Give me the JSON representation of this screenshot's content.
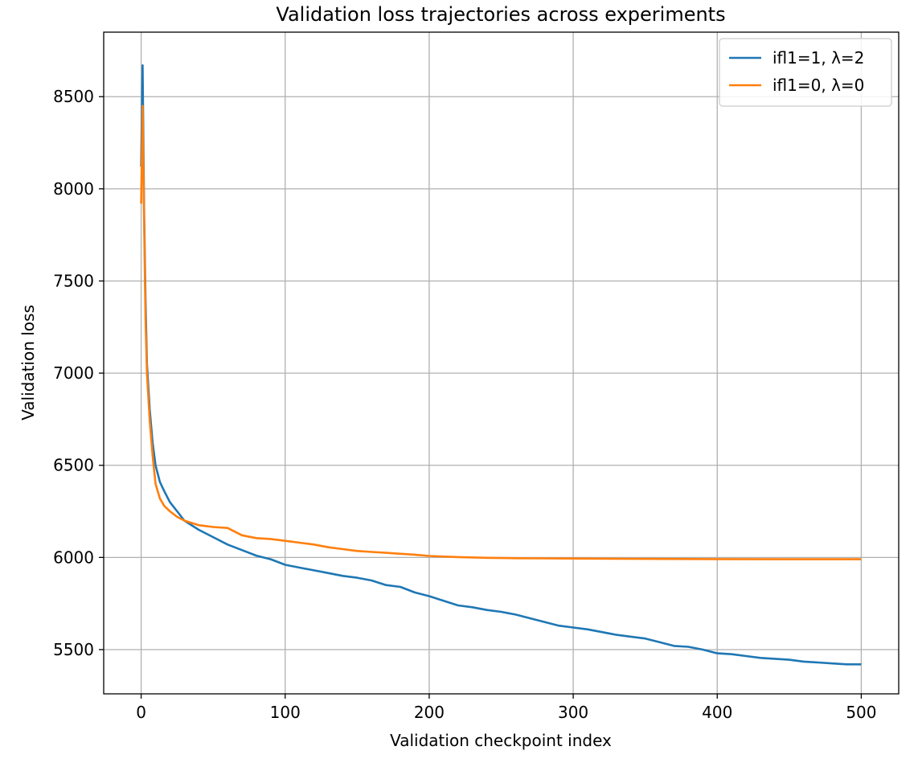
{
  "chart_data": {
    "type": "line",
    "title": "Validation loss trajectories across experiments",
    "xlabel": "Validation checkpoint index",
    "ylabel": "Validation loss",
    "xlim": [
      -26,
      526
    ],
    "ylim": [
      5260,
      8850
    ],
    "xticks": [
      0,
      100,
      200,
      300,
      400,
      500
    ],
    "yticks": [
      5500,
      6000,
      6500,
      7000,
      7500,
      8000,
      8500
    ],
    "grid": true,
    "legend_position": "top-right",
    "series": [
      {
        "name": "ifl1=1, λ=2",
        "color": "#1f77b4",
        "points": [
          [
            0,
            8120
          ],
          [
            1,
            8670
          ],
          [
            2,
            7900
          ],
          [
            3,
            7400
          ],
          [
            4,
            7050
          ],
          [
            6,
            6800
          ],
          [
            8,
            6620
          ],
          [
            10,
            6500
          ],
          [
            13,
            6410
          ],
          [
            16,
            6360
          ],
          [
            20,
            6300
          ],
          [
            25,
            6250
          ],
          [
            30,
            6200
          ],
          [
            40,
            6150
          ],
          [
            50,
            6110
          ],
          [
            60,
            6070
          ],
          [
            70,
            6040
          ],
          [
            80,
            6010
          ],
          [
            90,
            5990
          ],
          [
            100,
            5960
          ],
          [
            110,
            5945
          ],
          [
            120,
            5930
          ],
          [
            130,
            5915
          ],
          [
            140,
            5900
          ],
          [
            150,
            5890
          ],
          [
            160,
            5875
          ],
          [
            170,
            5850
          ],
          [
            180,
            5840
          ],
          [
            190,
            5810
          ],
          [
            200,
            5790
          ],
          [
            210,
            5765
          ],
          [
            220,
            5740
          ],
          [
            230,
            5730
          ],
          [
            240,
            5715
          ],
          [
            250,
            5705
          ],
          [
            260,
            5690
          ],
          [
            270,
            5670
          ],
          [
            280,
            5650
          ],
          [
            290,
            5630
          ],
          [
            300,
            5620
          ],
          [
            310,
            5610
          ],
          [
            320,
            5595
          ],
          [
            330,
            5580
          ],
          [
            340,
            5570
          ],
          [
            350,
            5560
          ],
          [
            360,
            5540
          ],
          [
            370,
            5520
          ],
          [
            380,
            5515
          ],
          [
            390,
            5500
          ],
          [
            400,
            5480
          ],
          [
            410,
            5475
          ],
          [
            420,
            5465
          ],
          [
            430,
            5455
          ],
          [
            440,
            5450
          ],
          [
            450,
            5445
          ],
          [
            460,
            5435
          ],
          [
            470,
            5430
          ],
          [
            480,
            5425
          ],
          [
            490,
            5420
          ],
          [
            500,
            5420
          ]
        ]
      },
      {
        "name": "ifl1=0, λ=0",
        "color": "#ff7f0e",
        "points": [
          [
            0,
            7920
          ],
          [
            1,
            8450
          ],
          [
            2,
            7850
          ],
          [
            3,
            7300
          ],
          [
            4,
            7000
          ],
          [
            6,
            6740
          ],
          [
            8,
            6550
          ],
          [
            10,
            6400
          ],
          [
            13,
            6320
          ],
          [
            16,
            6280
          ],
          [
            20,
            6250
          ],
          [
            25,
            6220
          ],
          [
            30,
            6200
          ],
          [
            40,
            6175
          ],
          [
            50,
            6165
          ],
          [
            60,
            6160
          ],
          [
            70,
            6120
          ],
          [
            80,
            6105
          ],
          [
            90,
            6100
          ],
          [
            100,
            6090
          ],
          [
            110,
            6080
          ],
          [
            120,
            6070
          ],
          [
            130,
            6055
          ],
          [
            140,
            6045
          ],
          [
            150,
            6035
          ],
          [
            160,
            6030
          ],
          [
            170,
            6025
          ],
          [
            180,
            6020
          ],
          [
            190,
            6015
          ],
          [
            200,
            6008
          ],
          [
            220,
            6002
          ],
          [
            240,
            5998
          ],
          [
            260,
            5996
          ],
          [
            280,
            5995
          ],
          [
            300,
            5994
          ],
          [
            330,
            5993
          ],
          [
            360,
            5992
          ],
          [
            400,
            5991
          ],
          [
            450,
            5990
          ],
          [
            500,
            5990
          ]
        ]
      }
    ]
  }
}
